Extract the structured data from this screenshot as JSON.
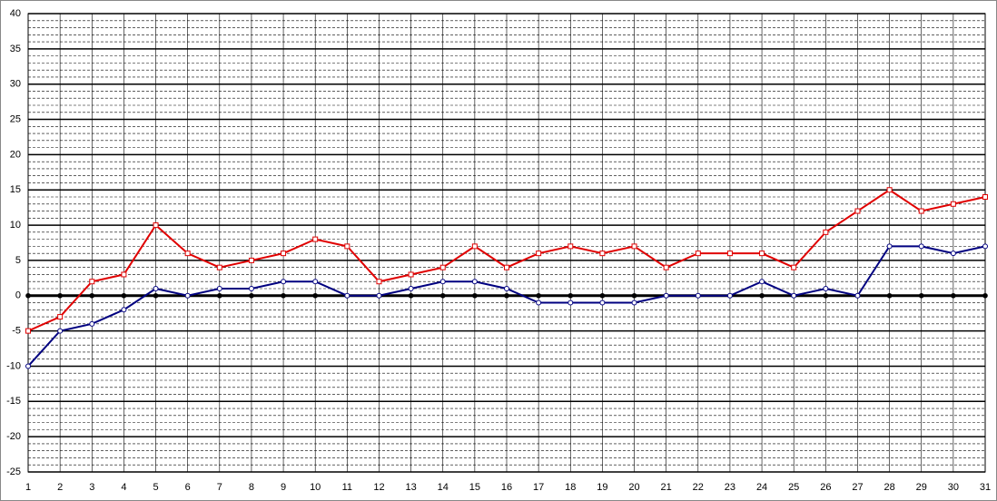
{
  "chart_data": {
    "type": "line",
    "x": [
      1,
      2,
      3,
      4,
      5,
      6,
      7,
      8,
      9,
      10,
      11,
      12,
      13,
      14,
      15,
      16,
      17,
      18,
      19,
      20,
      21,
      22,
      23,
      24,
      25,
      26,
      27,
      28,
      29,
      30,
      31
    ],
    "xlim": [
      1,
      31
    ],
    "xticks": [
      1,
      2,
      3,
      4,
      5,
      6,
      7,
      8,
      9,
      10,
      11,
      12,
      13,
      14,
      15,
      16,
      17,
      18,
      19,
      20,
      21,
      22,
      23,
      24,
      25,
      26,
      27,
      28,
      29,
      30,
      31
    ],
    "ylim": [
      -25,
      40
    ],
    "yticks": [
      -25,
      -20,
      -15,
      -10,
      -5,
      0,
      5,
      10,
      15,
      20,
      25,
      30,
      35,
      40
    ],
    "grid": true,
    "minor_grid": true,
    "series": [
      {
        "color": "#000000",
        "marker": "dot",
        "values": [
          0,
          0,
          0,
          0,
          0,
          0,
          0,
          0,
          0,
          0,
          0,
          0,
          0,
          0,
          0,
          0,
          0,
          0,
          0,
          0,
          0,
          0,
          0,
          0,
          0,
          0,
          0,
          0,
          0,
          0,
          0
        ]
      },
      {
        "color": "#000080",
        "marker": "circle",
        "values": [
          -10,
          -5,
          -4,
          -2,
          1,
          0,
          1,
          1,
          2,
          2,
          0,
          0,
          1,
          2,
          2,
          1,
          -1,
          -1,
          -1,
          -1,
          0,
          0,
          0,
          2,
          0,
          1,
          0,
          7,
          7,
          6,
          7
        ]
      },
      {
        "color": "#e00000",
        "marker": "square",
        "values": [
          -5,
          -3,
          2,
          3,
          10,
          6,
          4,
          5,
          6,
          8,
          7,
          2,
          3,
          4,
          7,
          4,
          6,
          7,
          6,
          7,
          4,
          6,
          6,
          6,
          4,
          9,
          12,
          15,
          12,
          13,
          14
        ]
      }
    ]
  }
}
